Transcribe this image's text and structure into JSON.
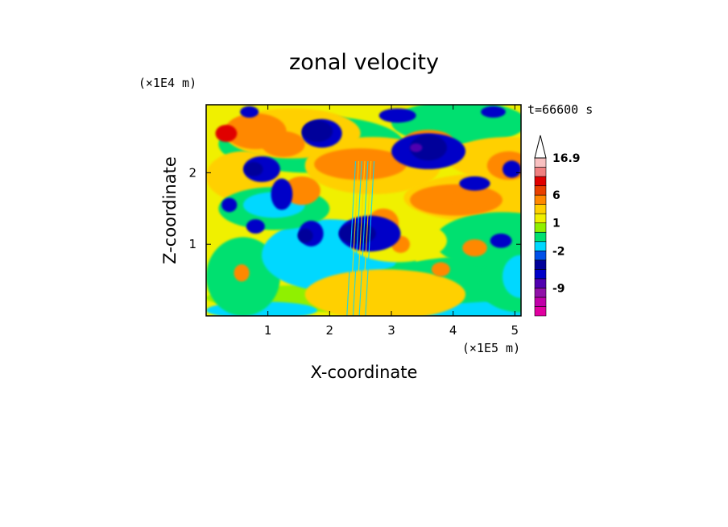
{
  "chart_data": {
    "type": "heatmap",
    "title": "zonal velocity",
    "xlabel": "X-coordinate",
    "ylabel": "Z-coordinate",
    "x_unit": "(×1E5 m)",
    "y_unit": "(×1E4 m)",
    "time_label": "t=66600 s",
    "xlim": [
      0,
      5.1
    ],
    "ylim": [
      0,
      2.95
    ],
    "x_ticks": [
      1,
      2,
      3,
      4,
      5
    ],
    "y_ticks": [
      1,
      2
    ],
    "x_tick_labels": [
      "1",
      "2",
      "3",
      "4",
      "5"
    ],
    "y_tick_labels": [
      "1",
      "2"
    ],
    "colorbar": {
      "levels": [
        -13,
        -11,
        -9,
        -7,
        -5,
        -4,
        -2,
        -1,
        0,
        1,
        2,
        4,
        6,
        8,
        10,
        12,
        16.9
      ],
      "colors": [
        "#e000a0",
        "#c000a8",
        "#9010a8",
        "#5000b0",
        "#0000c8",
        "#00009a",
        "#0050e8",
        "#00d8ff",
        "#00e070",
        "#90f000",
        "#f0f000",
        "#ffd000",
        "#ff8800",
        "#e84000",
        "#e00000",
        "#f08080",
        "#f8c0c0"
      ],
      "labels": [
        "16.9",
        "6",
        "1",
        "-2",
        "-9"
      ],
      "label_values": [
        16.9,
        6,
        1,
        -2,
        -9
      ],
      "extend_max": true
    },
    "grid": false
  }
}
